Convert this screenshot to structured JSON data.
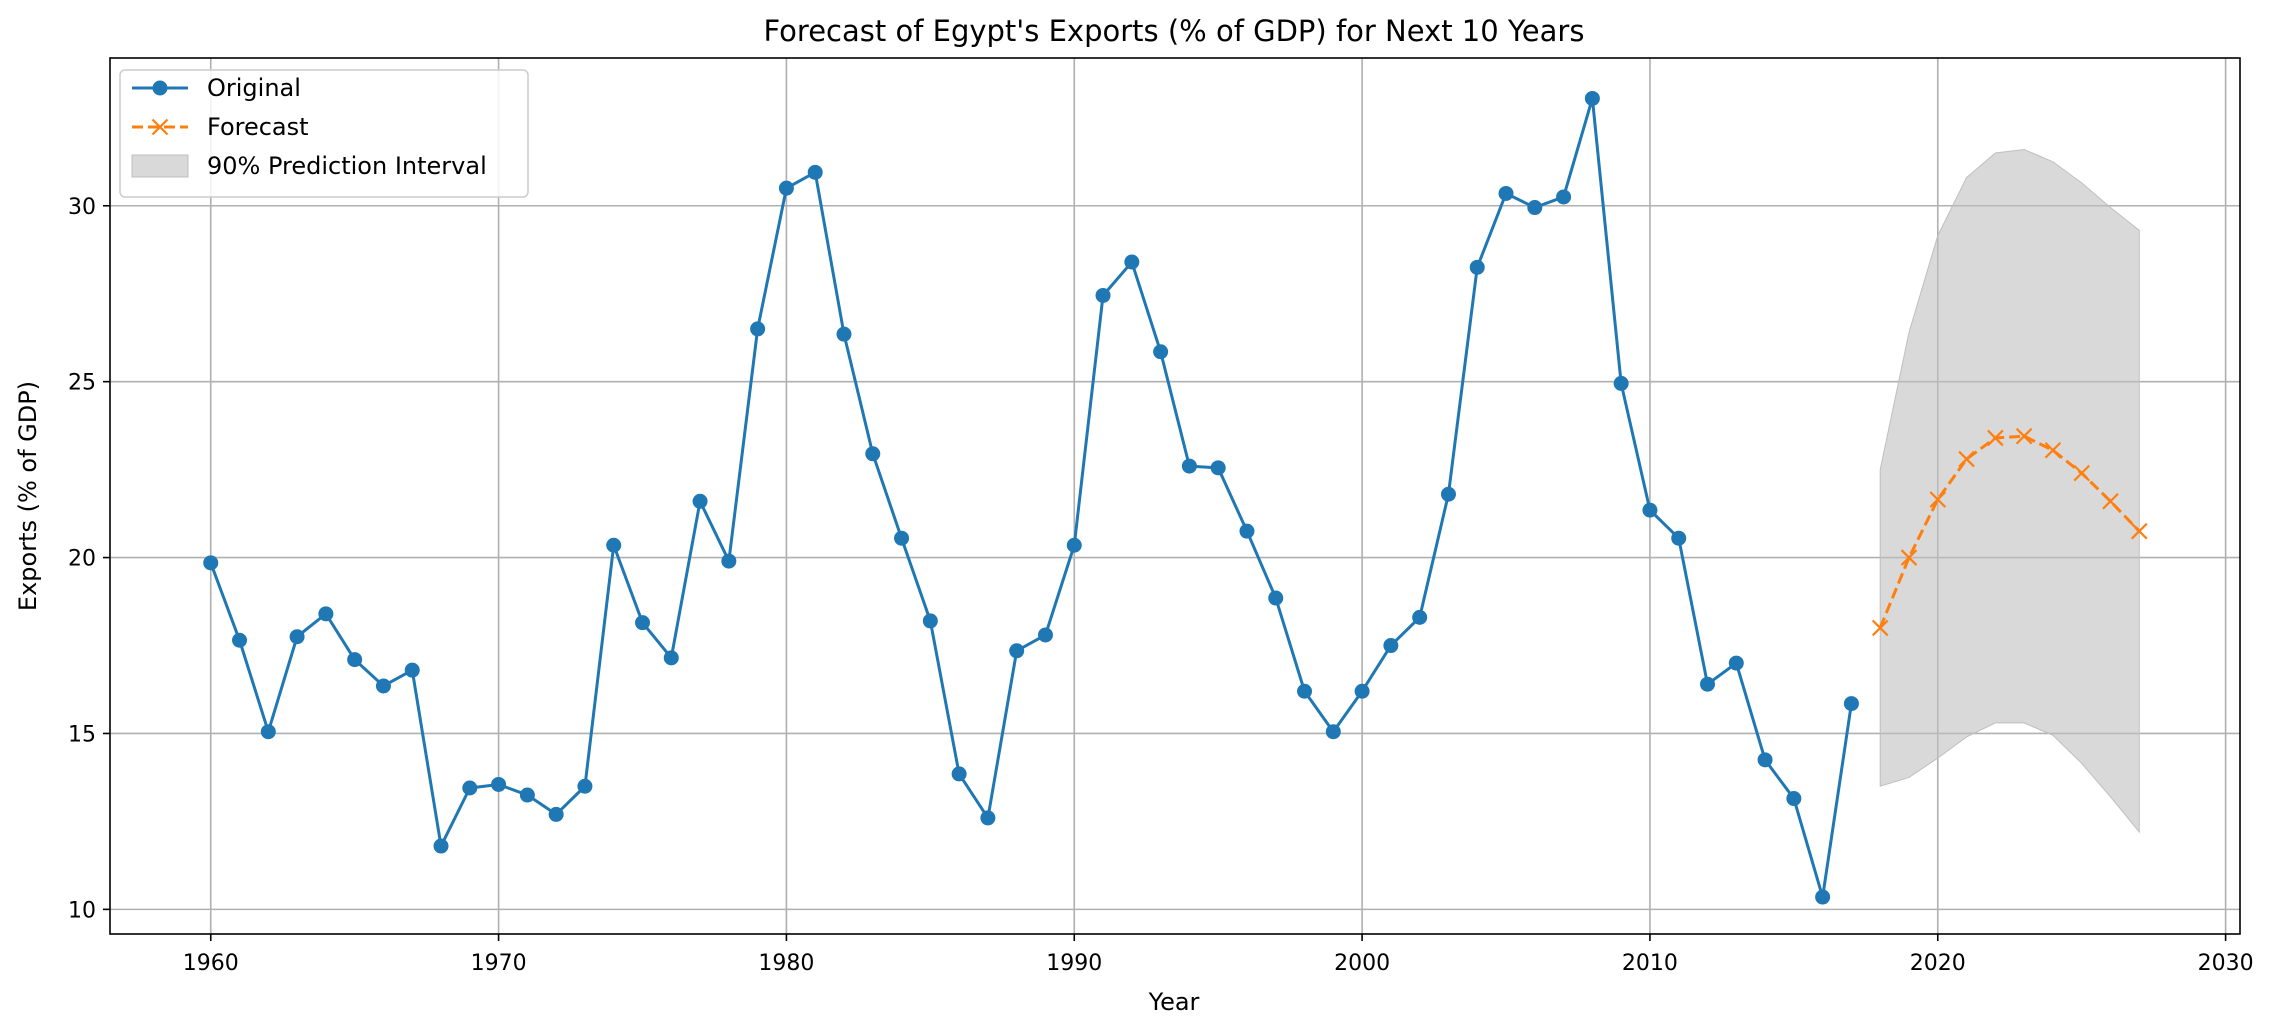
{
  "chart_data": {
    "type": "line",
    "title": "Forecast of Egypt's Exports (% of GDP) for Next 10 Years",
    "xlabel": "Year",
    "ylabel": "Exports (% of GDP)",
    "xlim": [
      1956.5,
      2030.5
    ],
    "ylim": [
      9.3,
      34.2
    ],
    "xticks": [
      1960,
      1970,
      1980,
      1990,
      2000,
      2010,
      2020,
      2030
    ],
    "yticks": [
      10,
      15,
      20,
      25,
      30
    ],
    "grid": true,
    "legend_position": "top-left",
    "series": [
      {
        "name": "Original",
        "color": "#1f77b4",
        "marker": "circle",
        "line_style": "solid",
        "x": [
          1960,
          1961,
          1962,
          1963,
          1964,
          1965,
          1966,
          1967,
          1968,
          1969,
          1970,
          1971,
          1972,
          1973,
          1974,
          1975,
          1976,
          1977,
          1978,
          1979,
          1980,
          1981,
          1982,
          1983,
          1984,
          1985,
          1986,
          1987,
          1988,
          1989,
          1990,
          1991,
          1992,
          1993,
          1994,
          1995,
          1996,
          1997,
          1998,
          1999,
          2000,
          2001,
          2002,
          2003,
          2004,
          2005,
          2006,
          2007,
          2008,
          2009,
          2010,
          2011,
          2012,
          2013,
          2014,
          2015,
          2016,
          2017
        ],
        "values": [
          19.85,
          17.65,
          15.05,
          17.75,
          18.4,
          17.1,
          16.35,
          16.8,
          11.8,
          13.45,
          13.55,
          13.25,
          12.7,
          13.5,
          20.35,
          18.15,
          17.15,
          21.6,
          19.9,
          26.5,
          30.5,
          30.95,
          26.35,
          22.95,
          20.55,
          18.2,
          13.85,
          12.6,
          17.35,
          17.8,
          20.35,
          27.45,
          28.4,
          25.85,
          22.6,
          22.55,
          20.75,
          18.85,
          16.2,
          15.05,
          16.2,
          17.5,
          18.3,
          21.8,
          28.25,
          30.35,
          29.95,
          30.25,
          33.05,
          24.95,
          21.35,
          20.55,
          16.4,
          17.0,
          14.25,
          13.15,
          10.35,
          15.85
        ]
      },
      {
        "name": "Forecast",
        "color": "#ff7f0e",
        "marker": "x",
        "line_style": "dashed",
        "x": [
          2018,
          2019,
          2020,
          2021,
          2022,
          2023,
          2024,
          2025,
          2026,
          2027
        ],
        "values": [
          18.0,
          20.0,
          21.65,
          22.8,
          23.4,
          23.45,
          23.05,
          22.4,
          21.6,
          20.75
        ]
      }
    ],
    "interval": {
      "name": "90% Prediction Interval",
      "color": "#bfbfbf",
      "x": [
        2018,
        2019,
        2020,
        2021,
        2022,
        2023,
        2024,
        2025,
        2026,
        2027
      ],
      "lower": [
        13.5,
        13.75,
        14.3,
        14.9,
        15.3,
        15.3,
        14.95,
        14.15,
        13.2,
        12.2
      ],
      "upper": [
        22.5,
        26.4,
        29.15,
        30.8,
        31.5,
        31.6,
        31.25,
        30.65,
        29.95,
        29.3
      ]
    }
  }
}
